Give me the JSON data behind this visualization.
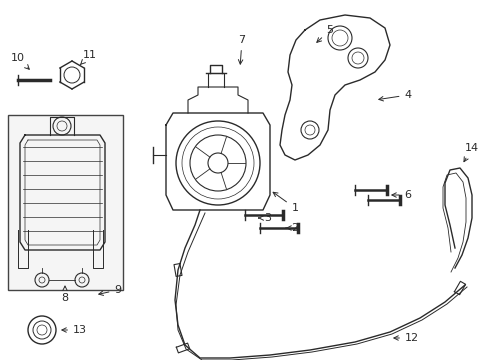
{
  "bg_color": "#ffffff",
  "line_color": "#2a2a2a",
  "label_color": "#111111",
  "fig_w": 4.89,
  "fig_h": 3.6,
  "dpi": 100
}
